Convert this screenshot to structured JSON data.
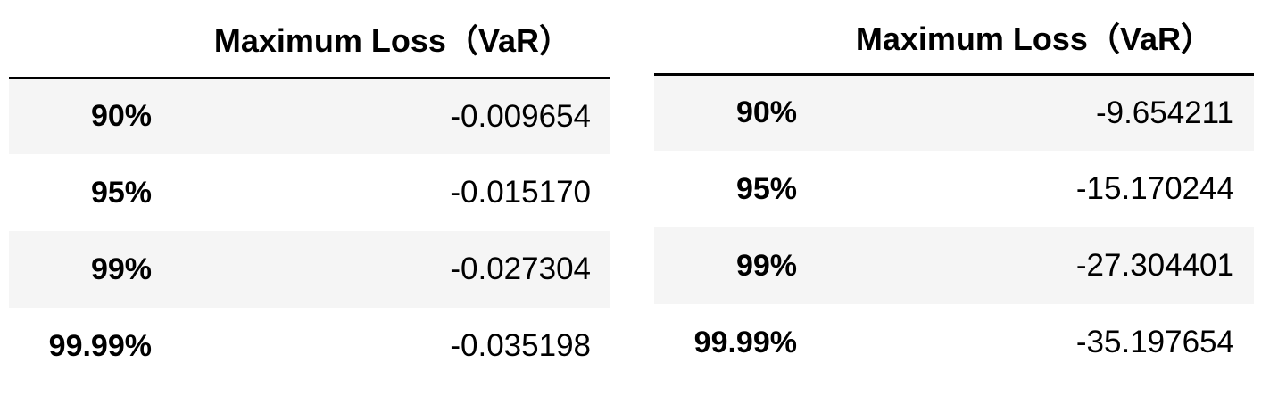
{
  "left_table": {
    "header": {
      "index": "",
      "column": "Maximum Loss（VaR）"
    },
    "rows": [
      {
        "label": "90%",
        "value": "-0.009654"
      },
      {
        "label": "95%",
        "value": "-0.015170"
      },
      {
        "label": "99%",
        "value": "-0.027304"
      },
      {
        "label": "99.99%",
        "value": "-0.035198"
      }
    ]
  },
  "right_table": {
    "header": {
      "index": "",
      "column": "Maximum Loss（VaR）"
    },
    "rows": [
      {
        "label": "90%",
        "value": "-9.654211"
      },
      {
        "label": "95%",
        "value": "-15.170244"
      },
      {
        "label": "99%",
        "value": "-27.304401"
      },
      {
        "label": "99.99%",
        "value": "-35.197654"
      }
    ]
  },
  "colors": {
    "row_stripe": "#f5f5f5",
    "row_plain": "#ffffff",
    "text": "#000000",
    "header_rule": "#000000"
  }
}
